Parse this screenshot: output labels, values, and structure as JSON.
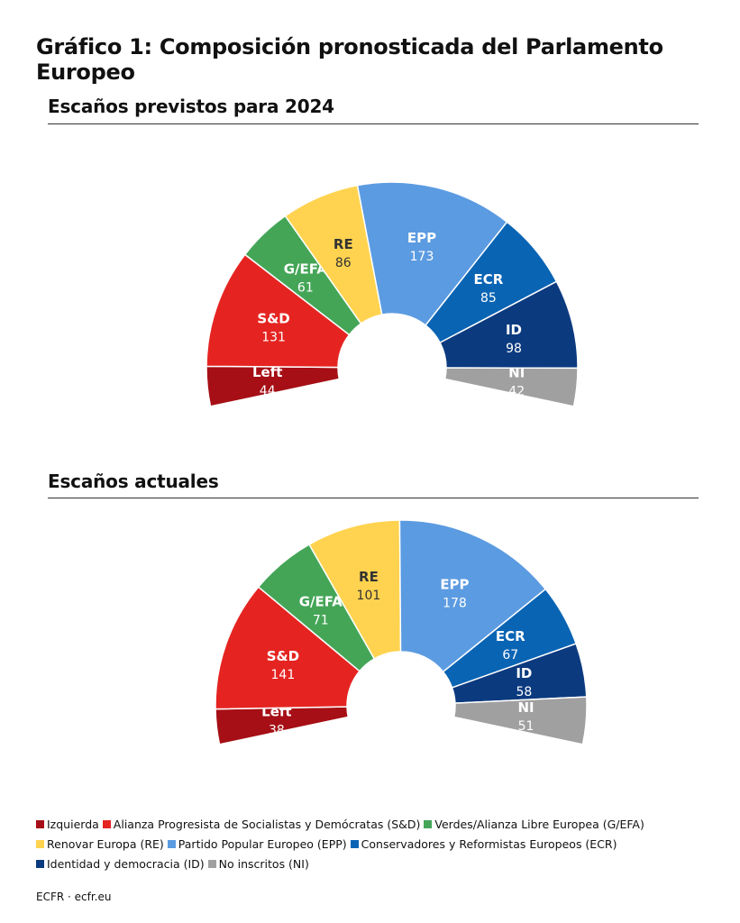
{
  "title": "Gráfico 1: Composición pronosticada del Parlamento Europeo",
  "footer": "ECFR · ecfr.eu",
  "colors": {
    "Left": "#a50f15",
    "S&D": "#e52421",
    "G/EFA": "#44a557",
    "RE": "#ffd34f",
    "EPP": "#5b9be1",
    "ECR": "#0a64b4",
    "ID": "#0b3a7f",
    "NI": "#a0a0a0"
  },
  "legend": [
    {
      "key": "Left",
      "label": "Izquierda"
    },
    {
      "key": "S&D",
      "label": "Alianza Progresista de Socialistas y Demócratas (S&D)"
    },
    {
      "key": "G/EFA",
      "label": "Verdes/Alianza Libre Europea (G/EFA)"
    },
    {
      "key": "RE",
      "label": "Renovar Europa (RE)"
    },
    {
      "key": "EPP",
      "label": "Partido Popular Europeo (EPP)"
    },
    {
      "key": "ECR",
      "label": "Conservadores y Reformistas Europeos (ECR)"
    },
    {
      "key": "ID",
      "label": "Identidad y democracia (ID)"
    },
    {
      "key": "NI",
      "label": "No inscritos (NI)"
    }
  ],
  "chart_data": [
    {
      "type": "pie",
      "subtype": "parliament-hemicycle",
      "title": "Escaños previstos para 2024",
      "categories": [
        "Left",
        "S&D",
        "G/EFA",
        "RE",
        "EPP",
        "ECR",
        "ID",
        "NI"
      ],
      "values": [
        44,
        131,
        61,
        86,
        173,
        85,
        98,
        42
      ]
    },
    {
      "type": "pie",
      "subtype": "parliament-hemicycle",
      "title": "Escaños actuales",
      "categories": [
        "Left",
        "S&D",
        "G/EFA",
        "RE",
        "EPP",
        "ECR",
        "ID",
        "NI"
      ],
      "values": [
        38,
        141,
        71,
        101,
        178,
        67,
        58,
        51
      ]
    }
  ]
}
